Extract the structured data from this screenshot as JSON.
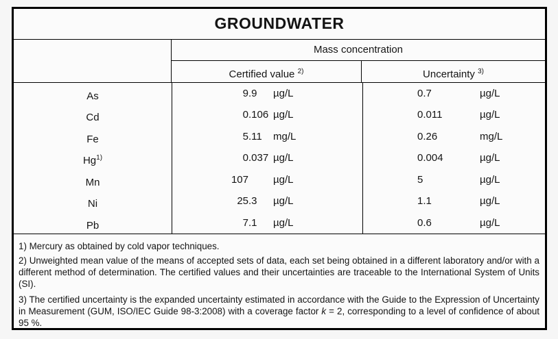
{
  "title": "GROUNDWATER",
  "table": {
    "group_header": "Mass concentration",
    "columns": {
      "certified": {
        "label": "Certified value",
        "sup": "2)"
      },
      "uncertainty": {
        "label": "Uncertainty",
        "sup": "3)"
      }
    },
    "rows": [
      {
        "element": "As",
        "element_sup": "",
        "cert_int": "9",
        "cert_frac": ".9",
        "cert_unit": "µg/L",
        "unc_value": "0.7",
        "unc_unit": "µg/L"
      },
      {
        "element": "Cd",
        "element_sup": "",
        "cert_int": "0",
        "cert_frac": ".106",
        "cert_unit": "µg/L",
        "unc_value": "0.011",
        "unc_unit": "µg/L"
      },
      {
        "element": "Fe",
        "element_sup": "",
        "cert_int": "5",
        "cert_frac": ".11",
        "cert_unit": "mg/L",
        "unc_value": "0.26",
        "unc_unit": "mg/L"
      },
      {
        "element": "Hg",
        "element_sup": "1)",
        "cert_int": "0",
        "cert_frac": ".037",
        "cert_unit": "µg/L",
        "unc_value": "0.004",
        "unc_unit": "µg/L"
      },
      {
        "element": "Mn",
        "element_sup": "",
        "cert_int": "107",
        "cert_frac": "",
        "cert_unit": "µg/L",
        "unc_value": "5",
        "unc_unit": "µg/L"
      },
      {
        "element": "Ni",
        "element_sup": "",
        "cert_int": "25",
        "cert_frac": ".3",
        "cert_unit": "µg/L",
        "unc_value": "1.1",
        "unc_unit": "µg/L"
      },
      {
        "element": "Pb",
        "element_sup": "",
        "cert_int": "7",
        "cert_frac": ".1",
        "cert_unit": "µg/L",
        "unc_value": "0.6",
        "unc_unit": "µg/L"
      }
    ]
  },
  "footnotes": {
    "fn1": "1) Mercury as obtained by cold vapor techniques.",
    "fn2": "2) Unweighted mean value of the means of accepted sets of data, each set being obtained in a different laboratory and/or with a different method of determination. The certified values and their uncertainties are traceable to the International System of Units (SI).",
    "fn3_pre": "3) The certified uncertainty is the expanded uncertainty estimated in accordance with the Guide to the Expression of Uncertainty in Measurement (GUM, ISO/IEC Guide 98-3:2008) with a coverage factor ",
    "fn3_k": "k",
    "fn3_post": " = 2, corresponding to a level of confidence of about 95 %."
  }
}
